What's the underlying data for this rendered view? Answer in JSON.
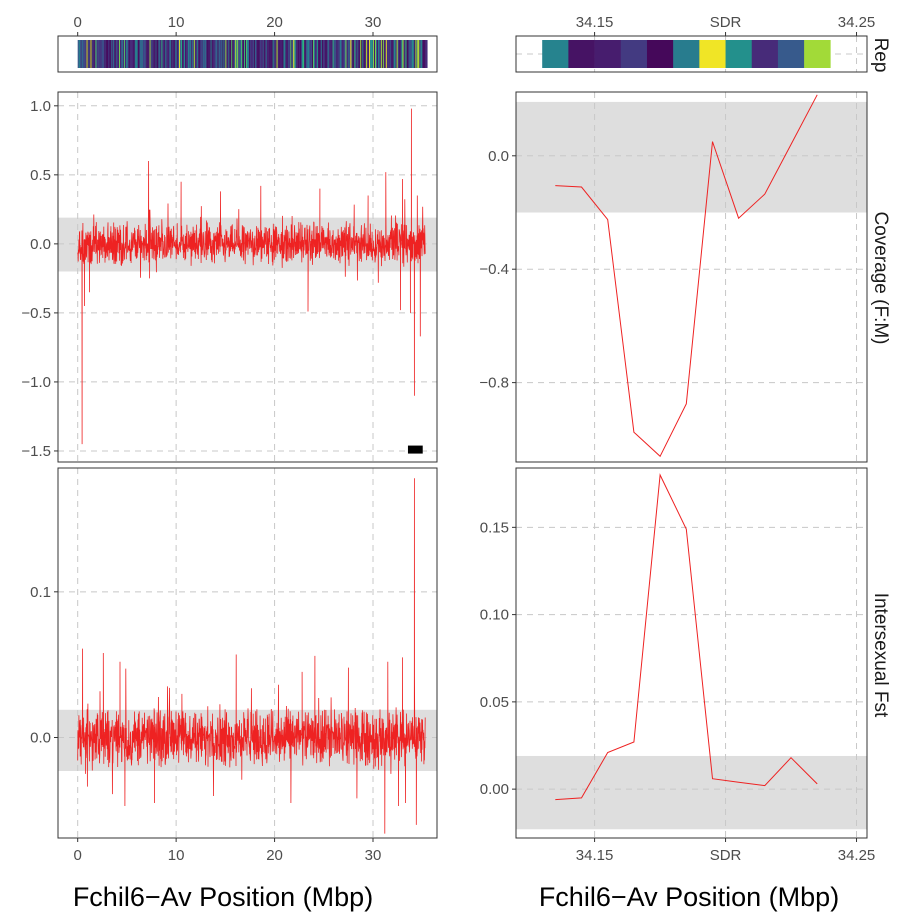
{
  "colors": {
    "series": "#ee2222",
    "sdr": "#e8262d",
    "band": "#dedede",
    "grid": "#c8c8c8",
    "panel_border": "#333333"
  },
  "strip_labels": {
    "rep": "Rep",
    "coverage": "Coverage (F:M)",
    "fst": "Intersexual Fst"
  },
  "chart_data": [
    {
      "id": "rep-left",
      "type": "heatmap",
      "description_scope": "whole chromosome repeat density track",
      "x_ticks": [
        0,
        10,
        20,
        30
      ],
      "x_tick_labels": [
        "0",
        "10",
        "20",
        "30"
      ],
      "xlim": [
        -2,
        36.5
      ],
      "data_range": [
        0,
        35.5
      ],
      "colormap": "viridis",
      "strip_label": "Rep"
    },
    {
      "id": "rep-right",
      "type": "heatmap",
      "description_scope": "SDR region repeat density track",
      "x_ticks": [
        34.15,
        34.2,
        34.25
      ],
      "x_tick_labels": [
        "34.15",
        "SDR",
        "34.25"
      ],
      "xlim": [
        34.12,
        34.254
      ],
      "bins": [
        {
          "start": 34.13,
          "end": 34.14,
          "level": 0.45
        },
        {
          "start": 34.14,
          "end": 34.15,
          "level": 0.05
        },
        {
          "start": 34.15,
          "end": 34.16,
          "level": 0.08
        },
        {
          "start": 34.16,
          "end": 34.17,
          "level": 0.17
        },
        {
          "start": 34.17,
          "end": 34.18,
          "level": 0.02
        },
        {
          "start": 34.18,
          "end": 34.19,
          "level": 0.42
        },
        {
          "start": 34.19,
          "end": 34.2,
          "level": 0.98
        },
        {
          "start": 34.2,
          "end": 34.21,
          "level": 0.5
        },
        {
          "start": 34.21,
          "end": 34.22,
          "level": 0.12
        },
        {
          "start": 34.22,
          "end": 34.23,
          "level": 0.28
        },
        {
          "start": 34.23,
          "end": 34.24,
          "level": 0.86
        }
      ],
      "colormap": "viridis",
      "strip_label": "Rep"
    },
    {
      "id": "coverage-left",
      "type": "line",
      "ylabel": "Coverage (F:M)",
      "xlim": [
        -2,
        36.5
      ],
      "ylim": [
        -1.58,
        1.1
      ],
      "x_ticks": [
        0,
        10,
        20,
        30
      ],
      "y_ticks": [
        1.0,
        0.5,
        0.0,
        -0.5,
        -1.0,
        -1.5
      ],
      "y_tick_labels": [
        "1.0",
        "0.5",
        "0.0",
        "−0.5",
        "−1.0",
        "−1.5"
      ],
      "band": [
        -0.2,
        0.19
      ],
      "x_range": [
        0,
        35.3
      ],
      "typical_range": [
        -0.15,
        0.15
      ],
      "spikes": [
        {
          "x": 0.45,
          "y": -1.45
        },
        {
          "x": 0.7,
          "y": -0.45
        },
        {
          "x": 1.2,
          "y": -0.35
        },
        {
          "x": 7.2,
          "y": 0.6
        },
        {
          "x": 7.3,
          "y": -0.25
        },
        {
          "x": 10.5,
          "y": 0.45
        },
        {
          "x": 14.5,
          "y": 0.38
        },
        {
          "x": 18.6,
          "y": 0.42
        },
        {
          "x": 23.4,
          "y": -0.49
        },
        {
          "x": 24.6,
          "y": 0.4
        },
        {
          "x": 29.5,
          "y": 0.35
        },
        {
          "x": 31.3,
          "y": 0.52
        },
        {
          "x": 32.8,
          "y": -0.48
        },
        {
          "x": 33.0,
          "y": 0.47
        },
        {
          "x": 33.8,
          "y": -0.5
        },
        {
          "x": 33.9,
          "y": 0.98
        },
        {
          "x": 34.2,
          "y": -1.1
        },
        {
          "x": 34.5,
          "y": 0.35
        },
        {
          "x": 34.8,
          "y": -0.67
        }
      ],
      "sdr_marker": {
        "x_start": 33.55,
        "x_end": 35.05,
        "y": -1.49
      }
    },
    {
      "id": "coverage-right",
      "type": "line",
      "ylabel": "Coverage (F:M)",
      "xlim": [
        34.12,
        34.254
      ],
      "ylim": [
        -1.08,
        0.225
      ],
      "x_ticks": [
        34.15,
        34.2,
        34.25
      ],
      "y_ticks": [
        0.0,
        -0.4,
        -0.8
      ],
      "y_tick_labels": [
        "0.0",
        "−0.4",
        "−0.8"
      ],
      "band": [
        -0.2,
        0.19
      ],
      "x": [
        34.135,
        34.145,
        34.155,
        34.165,
        34.175,
        34.185,
        34.195,
        34.205,
        34.215,
        34.225,
        34.235
      ],
      "y": [
        -0.105,
        -0.11,
        -0.225,
        -0.975,
        -1.06,
        -0.875,
        0.05,
        -0.22,
        -0.135,
        0.04,
        0.215
      ]
    },
    {
      "id": "fst-left",
      "type": "line",
      "ylabel": "Intersexual Fst",
      "xlabel": "Fchil6−Av Position (Mbp)",
      "xlim": [
        -2,
        36.5
      ],
      "ylim": [
        -0.069,
        0.185
      ],
      "x_ticks": [
        0,
        10,
        20,
        30
      ],
      "x_tick_labels": [
        "0",
        "10",
        "20",
        "30"
      ],
      "y_ticks": [
        0.1,
        0.0
      ],
      "y_tick_labels": [
        "0.1",
        "0.0"
      ],
      "band": [
        -0.023,
        0.019
      ],
      "x_range": [
        0,
        35.3
      ],
      "typical_range": [
        -0.015,
        0.015
      ],
      "spikes": [
        {
          "x": 0.5,
          "y": 0.061
        },
        {
          "x": 0.8,
          "y": -0.025
        },
        {
          "x": 2.6,
          "y": 0.058
        },
        {
          "x": 4.3,
          "y": 0.052
        },
        {
          "x": 4.8,
          "y": -0.047
        },
        {
          "x": 7.8,
          "y": -0.045
        },
        {
          "x": 13.8,
          "y": -0.035
        },
        {
          "x": 16.1,
          "y": 0.057
        },
        {
          "x": 22.8,
          "y": 0.045
        },
        {
          "x": 24.1,
          "y": 0.056
        },
        {
          "x": 27.5,
          "y": 0.048
        },
        {
          "x": 31.2,
          "y": -0.066
        },
        {
          "x": 31.5,
          "y": 0.052
        },
        {
          "x": 32.6,
          "y": -0.047
        },
        {
          "x": 33.0,
          "y": 0.055
        },
        {
          "x": 33.3,
          "y": -0.045
        },
        {
          "x": 34.2,
          "y": 0.178
        },
        {
          "x": 34.4,
          "y": -0.06
        }
      ]
    },
    {
      "id": "fst-right",
      "type": "line",
      "ylabel": "Intersexual Fst",
      "xlabel": "Fchil6−Av Position (Mbp)",
      "xlim": [
        34.12,
        34.254
      ],
      "ylim": [
        -0.028,
        0.184
      ],
      "x_ticks": [
        34.15,
        34.2,
        34.25
      ],
      "x_tick_labels": [
        "34.15",
        "SDR",
        "34.25"
      ],
      "y_ticks": [
        0.15,
        0.1,
        0.05,
        0.0
      ],
      "y_tick_labels": [
        "0.15",
        "0.10",
        "0.05",
        "0.00"
      ],
      "band": [
        -0.023,
        0.019
      ],
      "x": [
        34.135,
        34.145,
        34.155,
        34.165,
        34.175,
        34.185,
        34.195,
        34.205,
        34.215,
        34.225,
        34.235
      ],
      "y": [
        -0.006,
        -0.005,
        0.021,
        0.027,
        0.18,
        0.149,
        0.006,
        0.004,
        0.002,
        0.018,
        0.003
      ]
    }
  ]
}
